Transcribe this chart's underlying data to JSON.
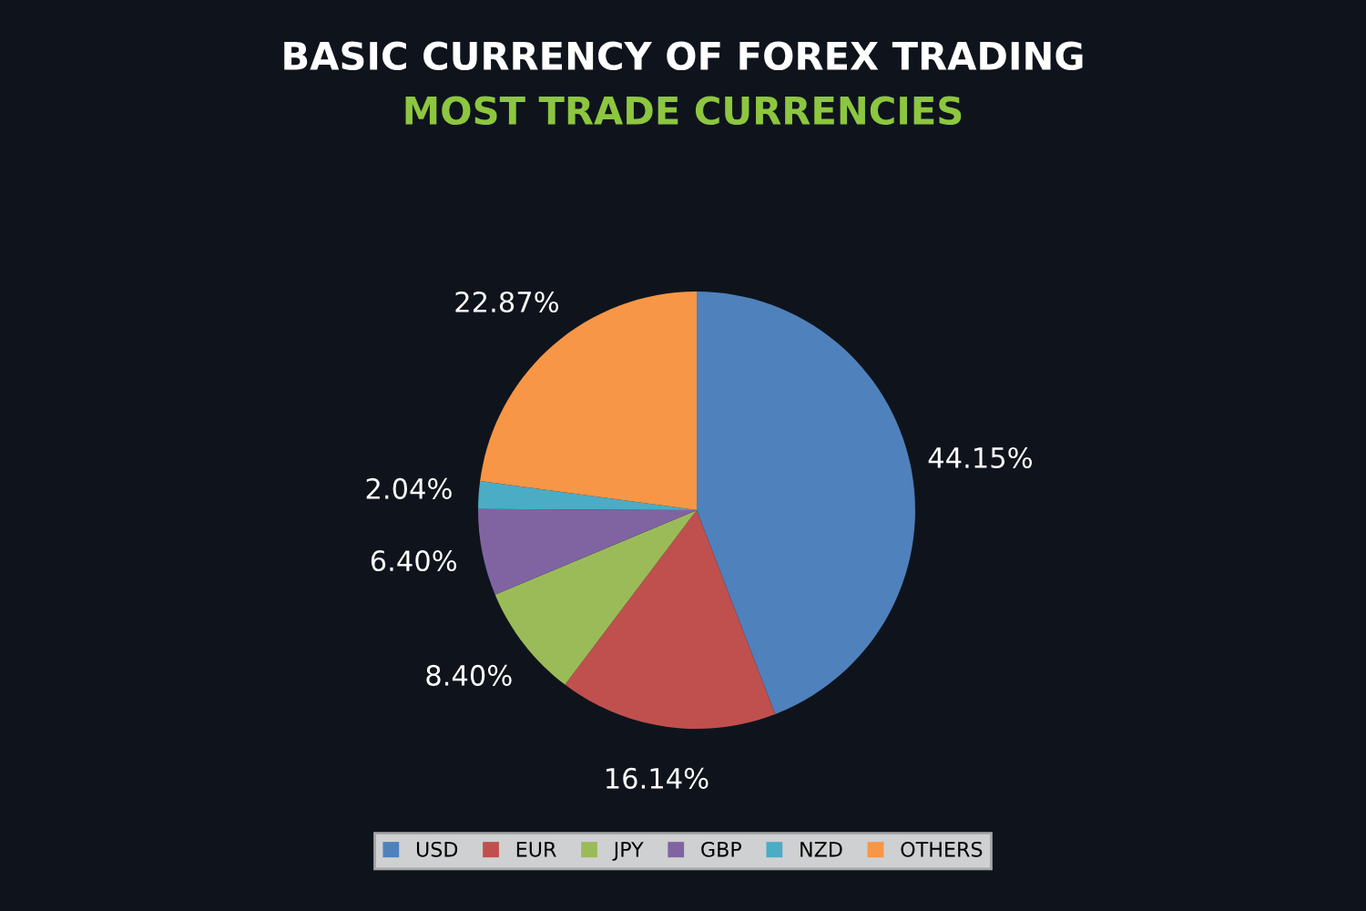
{
  "chart_data": {
    "type": "pie",
    "title": "BASIC CURRENCY OF FOREX TRADING",
    "subtitle": "MOST TRADE CURRENCIES",
    "categories": [
      "USD",
      "EUR",
      "JPY",
      "GBP",
      "NZD",
      "OTHERS"
    ],
    "values": [
      44.15,
      16.14,
      8.4,
      6.4,
      2.04,
      22.87
    ],
    "colors": [
      "#4f81bd",
      "#c0504d",
      "#9bbb59",
      "#8064a2",
      "#4bacc6",
      "#f79646"
    ],
    "value_labels": [
      "44.15%",
      "16.14%",
      "8.40%",
      "6.40%",
      "2.04%",
      "22.87%"
    ],
    "legend": "bottom"
  }
}
